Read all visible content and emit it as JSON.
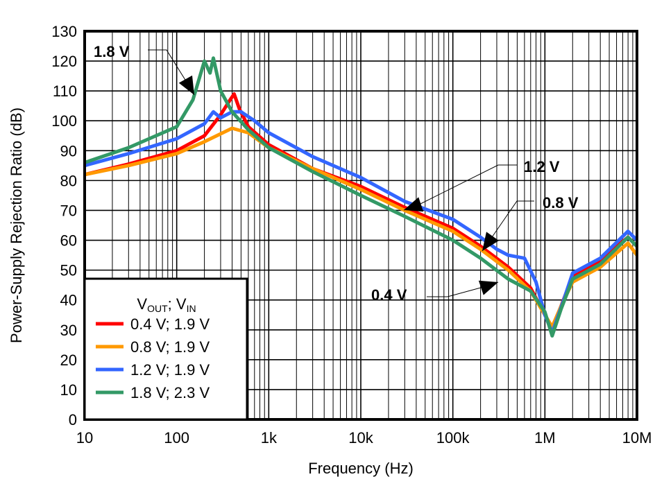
{
  "chart_data": {
    "type": "line",
    "title": "",
    "xlabel": "Frequency (Hz)",
    "ylabel": "Power-Supply Rejection Ratio (dB)",
    "xscale": "log",
    "xlim": [
      10,
      10000000
    ],
    "ylim": [
      0,
      130
    ],
    "grid": true,
    "x_ticks": [
      {
        "value": 10,
        "label": "10"
      },
      {
        "value": 100,
        "label": "100"
      },
      {
        "value": 1000,
        "label": "1k"
      },
      {
        "value": 10000,
        "label": "10k"
      },
      {
        "value": 100000,
        "label": "100k"
      },
      {
        "value": 1000000,
        "label": "1M"
      },
      {
        "value": 10000000,
        "label": "10M"
      }
    ],
    "y_ticks": [
      0,
      10,
      20,
      30,
      40,
      50,
      60,
      70,
      80,
      90,
      100,
      110,
      120,
      130
    ],
    "legend": {
      "placement": "bottom-left",
      "title_main": "V",
      "title_sub1": "OUT",
      "title_sep": "; V",
      "title_sub2": "IN"
    },
    "series": [
      {
        "name": "0.4 V; 1.9 V",
        "color": "#ff0000",
        "x": [
          10,
          30,
          100,
          200,
          300,
          380,
          420,
          480,
          600,
          1000,
          3000,
          10000,
          30000,
          100000,
          200000,
          400000,
          700000,
          1000000,
          1200000,
          1500000,
          2000000,
          3000000,
          4000000,
          6000000,
          8000000,
          10000000
        ],
        "y": [
          82,
          85.5,
          90,
          95,
          102,
          107,
          109,
          104,
          98,
          92,
          84,
          78,
          71,
          64,
          58,
          51,
          44,
          35,
          30,
          38,
          48,
          51,
          53,
          58,
          61,
          58
        ]
      },
      {
        "name": "0.8 V; 1.9 V",
        "color": "#ff9900",
        "x": [
          10,
          30,
          100,
          200,
          400,
          600,
          1000,
          3000,
          10000,
          30000,
          100000,
          200000,
          400000,
          700000,
          1000000,
          1200000,
          1500000,
          2000000,
          4000000,
          8000000,
          10000000
        ],
        "y": [
          82,
          85,
          89,
          93,
          97.5,
          96,
          91,
          84,
          77,
          70,
          63,
          57,
          50,
          43,
          35,
          31,
          38,
          46,
          51,
          59,
          55
        ]
      },
      {
        "name": "1.2 V; 1.9 V",
        "color": "#3366ff",
        "x": [
          10,
          30,
          100,
          200,
          250,
          300,
          400,
          500,
          700,
          1000,
          3000,
          10000,
          30000,
          100000,
          200000,
          300000,
          400000,
          600000,
          800000,
          1000000,
          1200000,
          1600000,
          2000000,
          4000000,
          8000000,
          10000000
        ],
        "y": [
          85,
          89,
          94,
          99,
          103,
          101,
          103,
          103,
          100,
          96,
          88,
          81,
          73,
          67,
          61,
          57,
          55,
          54,
          46,
          35,
          29,
          40,
          49,
          54,
          63,
          60
        ]
      },
      {
        "name": "1.8 V; 2.3 V",
        "color": "#339966",
        "x": [
          10,
          30,
          100,
          150,
          200,
          230,
          250,
          300,
          400,
          600,
          1000,
          3000,
          10000,
          30000,
          100000,
          200000,
          400000,
          700000,
          1000000,
          1200000,
          1500000,
          2000000,
          4000000,
          8000000,
          10000000
        ],
        "y": [
          86,
          91,
          98,
          107,
          120,
          116,
          121,
          110,
          103,
          97,
          91,
          83,
          75,
          68,
          60,
          54,
          47,
          43,
          36,
          28,
          37,
          47,
          52,
          61,
          58
        ]
      }
    ],
    "annotations": [
      {
        "text": "1.8 V",
        "target_x": 200,
        "target_y": 107
      },
      {
        "text": "1.2 V",
        "target_x": 30000,
        "target_y": 70
      },
      {
        "text": "0.8 V",
        "target_x": 250000,
        "target_y": 56
      },
      {
        "text": "0.4 V",
        "target_x": 300000,
        "target_y": 47
      }
    ]
  }
}
